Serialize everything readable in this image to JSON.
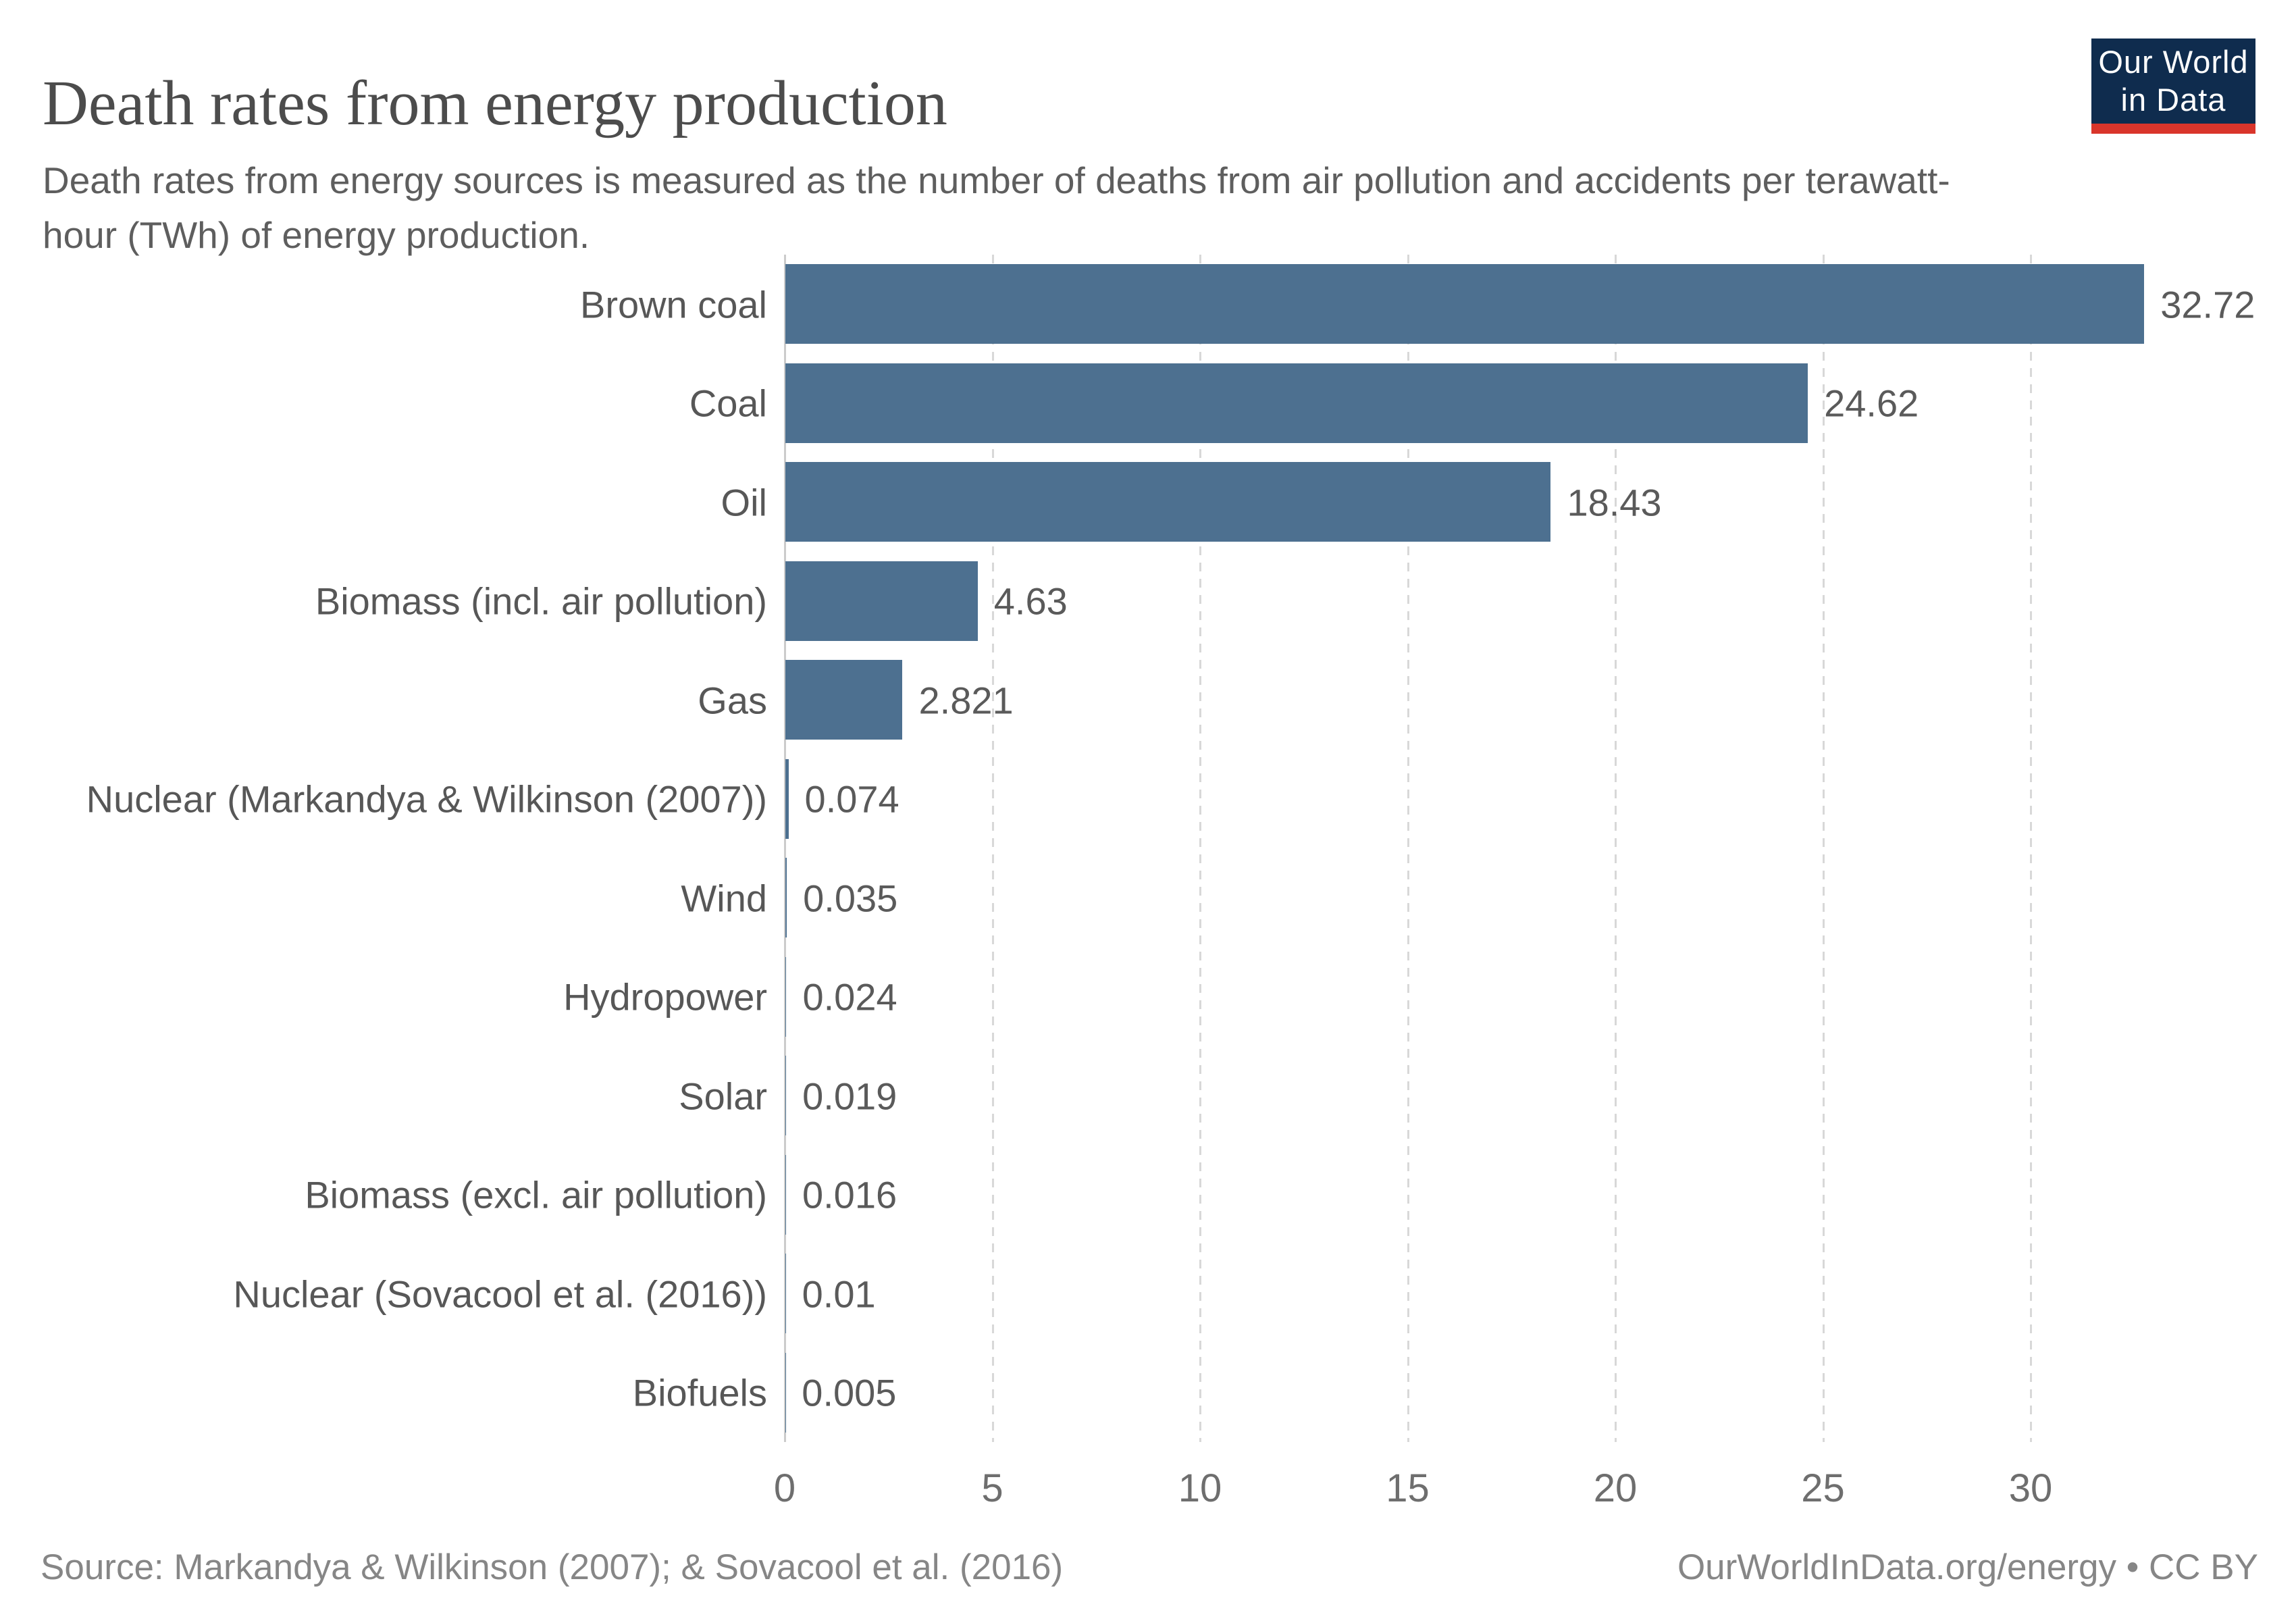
{
  "header": {
    "title": "Death rates from energy production",
    "subtitle": "Death rates from energy sources is measured as the number of deaths from air pollution and accidents per terawatt-hour (TWh) of energy production.",
    "logo": {
      "line1": "Our World",
      "line2": "in Data",
      "background_color": "#0f2c4e",
      "accent_color": "#d9352b"
    }
  },
  "chart_data": {
    "type": "bar",
    "orientation": "horizontal",
    "title": "Death rates from energy production",
    "xlabel": "",
    "ylabel": "",
    "categories": [
      "Brown coal",
      "Coal",
      "Oil",
      "Biomass (incl. air pollution)",
      "Gas",
      "Nuclear (Markandya & Wilkinson (2007))",
      "Wind",
      "Hydropower",
      "Solar",
      "Biomass (excl. air pollution)",
      "Nuclear (Sovacool et al. (2016))",
      "Biofuels"
    ],
    "values": [
      32.72,
      24.62,
      18.43,
      4.63,
      2.821,
      0.074,
      0.035,
      0.024,
      0.019,
      0.016,
      0.01,
      0.005
    ],
    "value_labels": [
      "32.72",
      "24.62",
      "18.43",
      "4.63",
      "2.821",
      "0.074",
      "0.035",
      "0.024",
      "0.019",
      "0.016",
      "0.01",
      "0.005"
    ],
    "xticks": [
      0,
      5,
      10,
      15,
      20,
      25,
      30
    ],
    "xlim": [
      0,
      35.4
    ],
    "grid": "vertical-dashed",
    "bar_color": "#4d7090",
    "gridline_color": "#d8d8d8",
    "axis_color": "#cbcbcb"
  },
  "footer": {
    "source": "Source: Markandya & Wilkinson (2007); & Sovacool et al. (2016)",
    "attribution": "OurWorldInData.org/energy • CC BY"
  }
}
